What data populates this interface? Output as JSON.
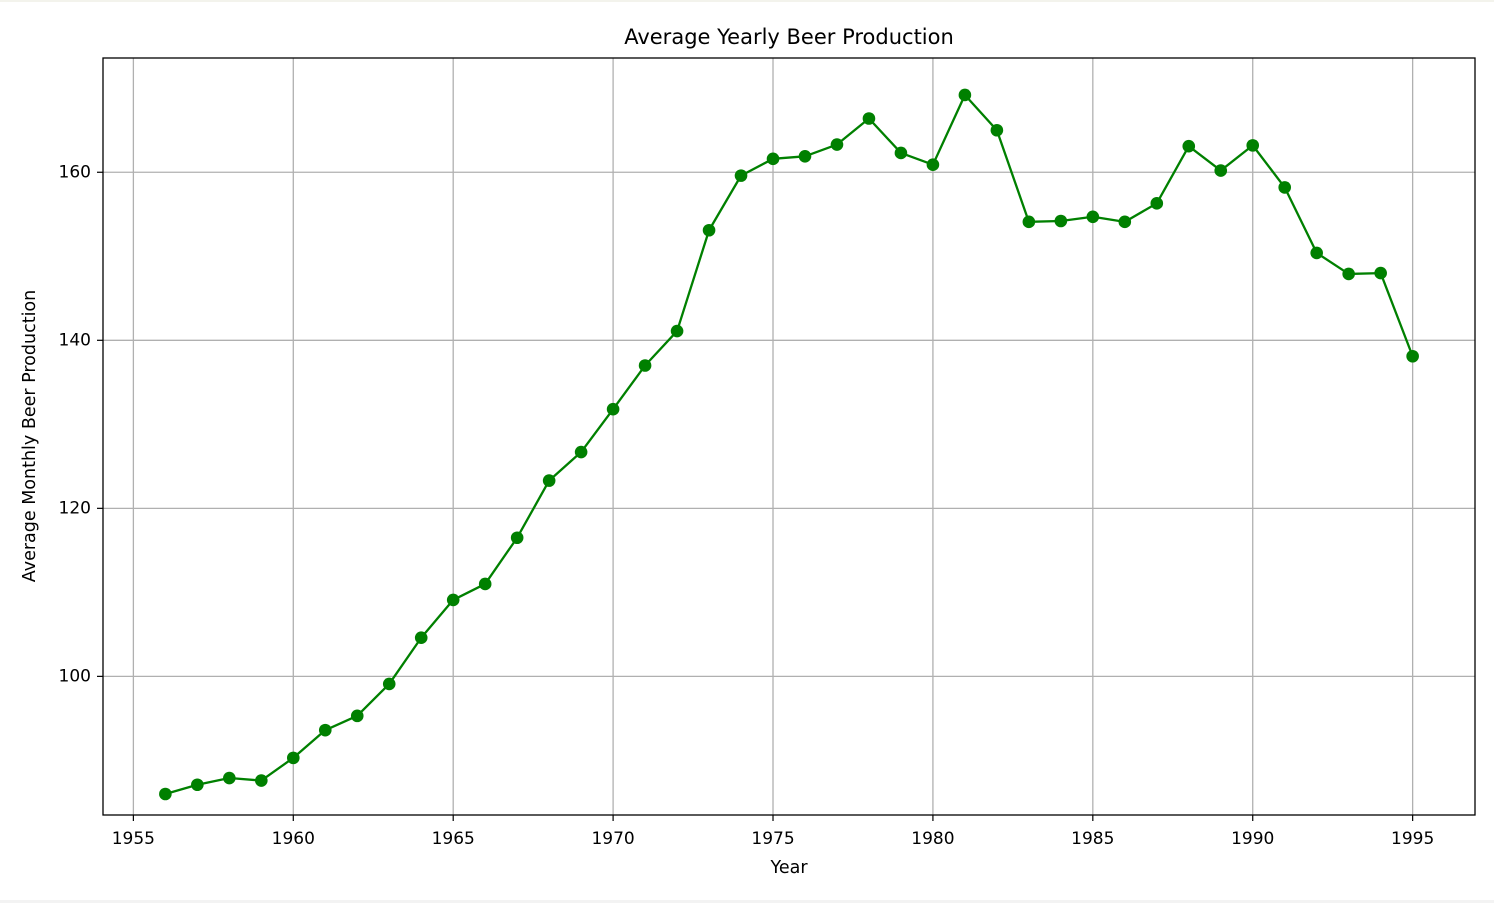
{
  "chart_data": {
    "type": "line",
    "title": "Average Yearly Beer Production",
    "xlabel": "Year",
    "ylabel": "Average Monthly Beer Production",
    "xlim": [
      1954.05,
      1996.95
    ],
    "ylim": [
      83.5,
      173.6
    ],
    "xticks": [
      1955,
      1960,
      1965,
      1970,
      1975,
      1980,
      1985,
      1990,
      1995
    ],
    "yticks": [
      100,
      120,
      140,
      160
    ],
    "grid": true,
    "legend": "none",
    "colors": {
      "line": "#008000",
      "marker": "#008000",
      "grid": "#b0b0b0"
    },
    "marker": "circle",
    "series": [
      {
        "x": [
          1956,
          1957,
          1958,
          1959,
          1960,
          1961,
          1962,
          1963,
          1964,
          1965,
          1966,
          1967,
          1968,
          1969,
          1970,
          1971,
          1972,
          1973,
          1974,
          1975,
          1976,
          1977,
          1978,
          1979,
          1980,
          1981,
          1982,
          1983,
          1984,
          1985,
          1986,
          1987,
          1988,
          1989,
          1990,
          1991,
          1992,
          1993,
          1994,
          1995
        ],
        "values": [
          86.0,
          87.1,
          87.9,
          87.6,
          90.3,
          93.6,
          95.3,
          99.1,
          104.6,
          109.1,
          111.0,
          116.5,
          123.3,
          126.7,
          131.8,
          137.0,
          141.1,
          153.1,
          159.6,
          161.6,
          161.9,
          163.3,
          166.4,
          162.3,
          160.9,
          169.2,
          165.0,
          154.1,
          154.2,
          154.7,
          154.1,
          156.3,
          163.1,
          160.2,
          163.2,
          158.2,
          150.4,
          147.9,
          148.0,
          138.1
        ]
      }
    ]
  }
}
